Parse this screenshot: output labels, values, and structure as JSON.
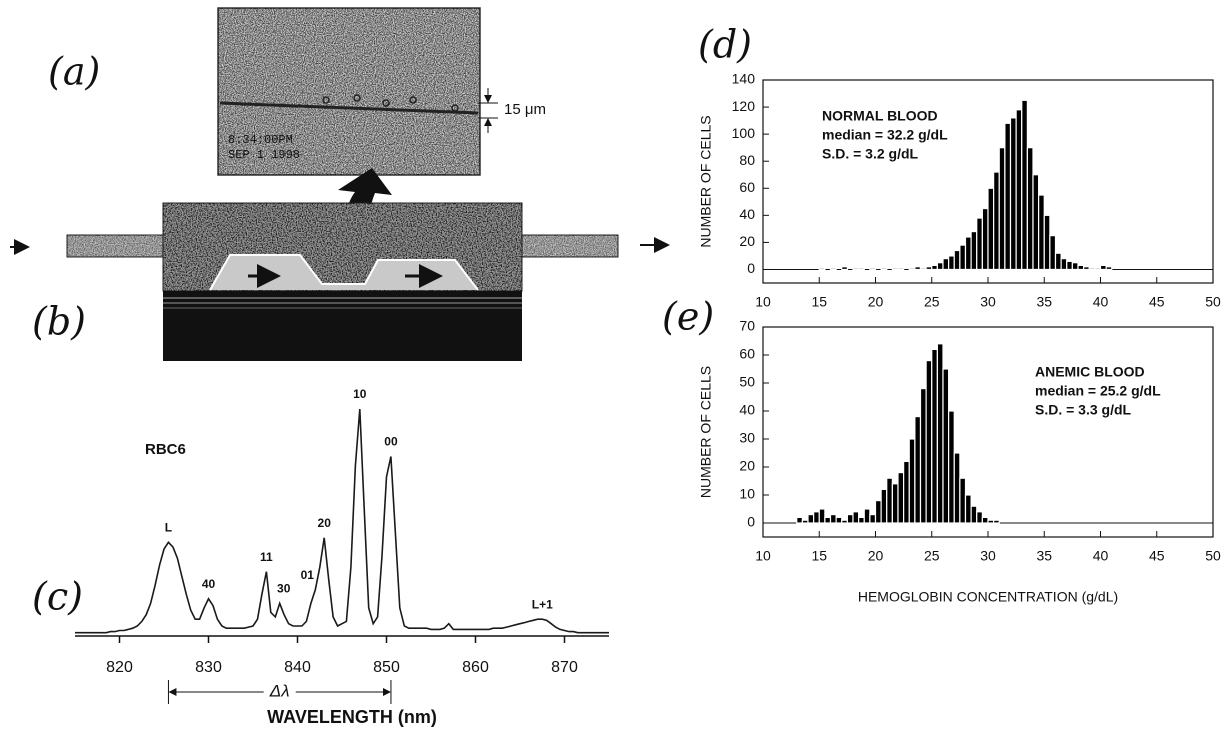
{
  "panel_labels": [
    "(a)",
    "(b)",
    "(c)",
    "(d)",
    "(e)"
  ],
  "micrograph": {
    "scale_bar": "15 μm",
    "timestamp": [
      "8:34:00PM",
      "SEP 1 1998"
    ]
  },
  "chart_data": [
    {
      "type": "line",
      "color": "#1a1a1a",
      "title": "RBC6",
      "x_label": "WAVELENGTH (nm)",
      "xlim": [
        815,
        875
      ],
      "xticks": [
        820,
        830,
        840,
        850,
        860,
        870
      ],
      "ylim": [
        0,
        100
      ],
      "x": [
        815,
        815.5,
        816,
        816.5,
        817,
        817.5,
        818,
        818.5,
        819,
        819.5,
        820,
        820.5,
        821,
        821.5,
        822,
        822.5,
        823,
        823.5,
        824,
        824.5,
        825,
        825.5,
        826,
        826.5,
        827,
        827.5,
        828,
        828.5,
        829,
        829.5,
        830,
        830.5,
        831,
        831.5,
        832,
        832.5,
        833,
        833.5,
        834,
        834.5,
        835,
        835.5,
        836,
        836.5,
        837,
        837.5,
        838,
        838.5,
        839,
        839.5,
        840,
        840.5,
        841,
        841.5,
        842,
        842.5,
        843,
        843.5,
        844,
        844.5,
        845,
        845.5,
        846,
        846.5,
        847,
        847.5,
        848,
        848.5,
        849,
        849.5,
        850,
        850.5,
        851,
        851.5,
        852,
        852.5,
        853,
        853.5,
        854,
        854.5,
        855,
        855.5,
        856,
        856.5,
        857,
        857.5,
        858,
        858.5,
        859,
        859.5,
        860,
        860.5,
        861,
        861.5,
        862,
        862.5,
        863,
        863.5,
        864,
        864.5,
        865,
        865.5,
        866,
        866.5,
        867,
        867.5,
        868,
        868.5,
        869,
        869.5,
        870,
        870.5,
        871,
        871.5,
        872,
        872.5,
        873,
        873.5,
        874,
        874.5,
        875
      ],
      "values": [
        1,
        1,
        1,
        1,
        1,
        1,
        1,
        1,
        1.5,
        1.5,
        2,
        2,
        2.5,
        3,
        4,
        6,
        9,
        14,
        22,
        31,
        38,
        41,
        39,
        34,
        26,
        18,
        11,
        7,
        7,
        12,
        16,
        13,
        7,
        4,
        3,
        3,
        3,
        3,
        3,
        3.5,
        4,
        7,
        18,
        28,
        10,
        8,
        14,
        9,
        5,
        4,
        4,
        4,
        6,
        14,
        20,
        30,
        43,
        25,
        8,
        4,
        5,
        6,
        30,
        75,
        100,
        55,
        12,
        5,
        8,
        35,
        70,
        79,
        45,
        12,
        4,
        3,
        3,
        3,
        3,
        3,
        2.5,
        2.5,
        2.5,
        3,
        5,
        2.5,
        2.5,
        2.5,
        2.5,
        2.5,
        2.5,
        2.5,
        2.5,
        2.5,
        3,
        3,
        3,
        3.5,
        4,
        4.5,
        5,
        5.5,
        6,
        6.5,
        7,
        7,
        6.5,
        5,
        3.5,
        2.5,
        2,
        1.5,
        1.5,
        1,
        1,
        1,
        1,
        1,
        1,
        1,
        1
      ],
      "peak_labels": [
        {
          "label": "L",
          "x": 825.5
        },
        {
          "label": "40",
          "x": 830
        },
        {
          "label": "11",
          "x": 836.5
        },
        {
          "label": "30",
          "x": 838
        },
        {
          "label": "01",
          "x": 842
        },
        {
          "label": "20",
          "x": 843
        },
        {
          "label": "10",
          "x": 847
        },
        {
          "label": "00",
          "x": 850.5
        },
        {
          "label": "L+1",
          "x": 867.5
        }
      ],
      "delta_lambda": {
        "label": "Δλ",
        "from": 825.5,
        "to": 850.5
      }
    },
    {
      "type": "histogram",
      "color": "#000000",
      "y_label": "NUMBER OF CELLS",
      "annotations": [
        "NORMAL BLOOD",
        "median = 32.2 g/dL",
        "S.D. = 3.2 g/dL"
      ],
      "xlim": [
        10,
        50
      ],
      "xticks": [
        10,
        15,
        20,
        25,
        30,
        35,
        40,
        45,
        50
      ],
      "ylim": [
        -10,
        140
      ],
      "yticks": [
        0,
        20,
        40,
        60,
        80,
        100,
        120,
        140
      ],
      "bins": [
        15,
        15.5,
        16,
        16.5,
        17,
        17.5,
        18,
        18.5,
        19,
        19.5,
        20,
        20.5,
        21,
        21.5,
        22,
        22.5,
        23,
        23.5,
        24,
        24.5,
        25,
        25.5,
        26,
        26.5,
        27,
        27.5,
        28,
        28.5,
        29,
        29.5,
        30,
        30.5,
        31,
        31.5,
        32,
        32.5,
        33,
        33.5,
        34,
        34.5,
        35,
        35.5,
        36,
        36.5,
        37,
        37.5,
        38,
        38.5,
        39,
        39.5,
        40,
        40.5,
        41
      ],
      "values": [
        1,
        0,
        1,
        0,
        2,
        0,
        1,
        1,
        0,
        1,
        0,
        1,
        0,
        1,
        1,
        0,
        1,
        2,
        1,
        2,
        3,
        5,
        8,
        10,
        14,
        18,
        24,
        28,
        38,
        45,
        60,
        72,
        90,
        108,
        112,
        118,
        125,
        90,
        70,
        55,
        40,
        25,
        12,
        8,
        6,
        5,
        3,
        2,
        1,
        1,
        3,
        2
      ]
    },
    {
      "type": "histogram",
      "color": "#000000",
      "y_label": "NUMBER OF CELLS",
      "x_label": "HEMOGLOBIN CONCENTRATION (g/dL)",
      "annotations": [
        "ANEMIC BLOOD",
        "median = 25.2 g/dL",
        "S.D. = 3.3 g/dL"
      ],
      "xlim": [
        10,
        50
      ],
      "xticks": [
        10,
        15,
        20,
        25,
        30,
        35,
        40,
        45,
        50
      ],
      "ylim": [
        -5,
        70
      ],
      "yticks": [
        0,
        10,
        20,
        30,
        40,
        50,
        60,
        70
      ],
      "bins": [
        13,
        13.5,
        14,
        14.5,
        15,
        15.5,
        16,
        16.5,
        17,
        17.5,
        18,
        18.5,
        19,
        19.5,
        20,
        20.5,
        21,
        21.5,
        22,
        22.5,
        23,
        23.5,
        24,
        24.5,
        25,
        25.5,
        26,
        26.5,
        27,
        27.5,
        28,
        28.5,
        29,
        29.5,
        30,
        30.5,
        31
      ],
      "values": [
        2,
        1,
        3,
        4,
        5,
        2,
        3,
        2,
        1,
        3,
        4,
        2,
        5,
        3,
        8,
        12,
        16,
        14,
        18,
        22,
        30,
        38,
        48,
        58,
        62,
        64,
        55,
        40,
        25,
        16,
        10,
        6,
        4,
        2,
        1,
        1
      ]
    }
  ]
}
